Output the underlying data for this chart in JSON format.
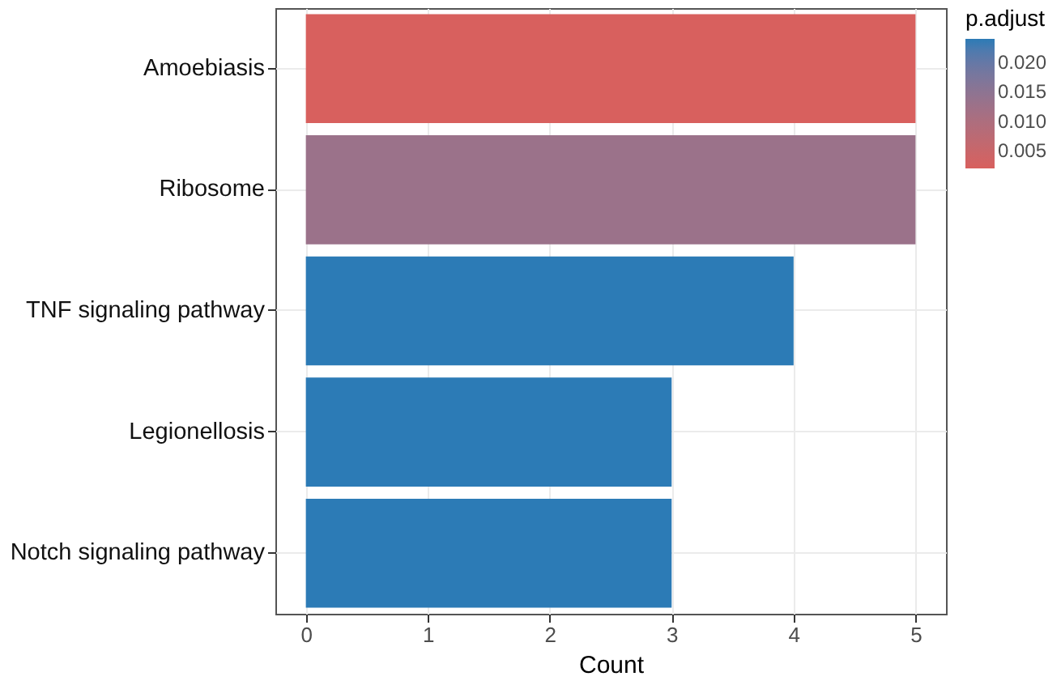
{
  "chart_data": {
    "type": "bar",
    "orientation": "horizontal",
    "categories": [
      "Amoebiasis",
      "Ribosome",
      "TNF signaling pathway",
      "Legionellosis",
      "Notch signaling pathway"
    ],
    "values": [
      5,
      5,
      4,
      3,
      3
    ],
    "cvalues": [
      0.002,
      0.013,
      0.024,
      0.024,
      0.024
    ],
    "xlabel": "Count",
    "xlim": [
      -0.25,
      5.25
    ],
    "xticks": [
      0,
      1,
      2,
      3,
      4,
      5
    ],
    "clabel": "p.adjust",
    "clim": [
      0.002,
      0.024
    ],
    "cticks": [
      {
        "value": 0.005,
        "label": "0.005"
      },
      {
        "value": 0.01,
        "label": "0.010"
      },
      {
        "value": 0.015,
        "label": "0.015"
      },
      {
        "value": 0.02,
        "label": "0.020"
      }
    ],
    "grid": true
  }
}
